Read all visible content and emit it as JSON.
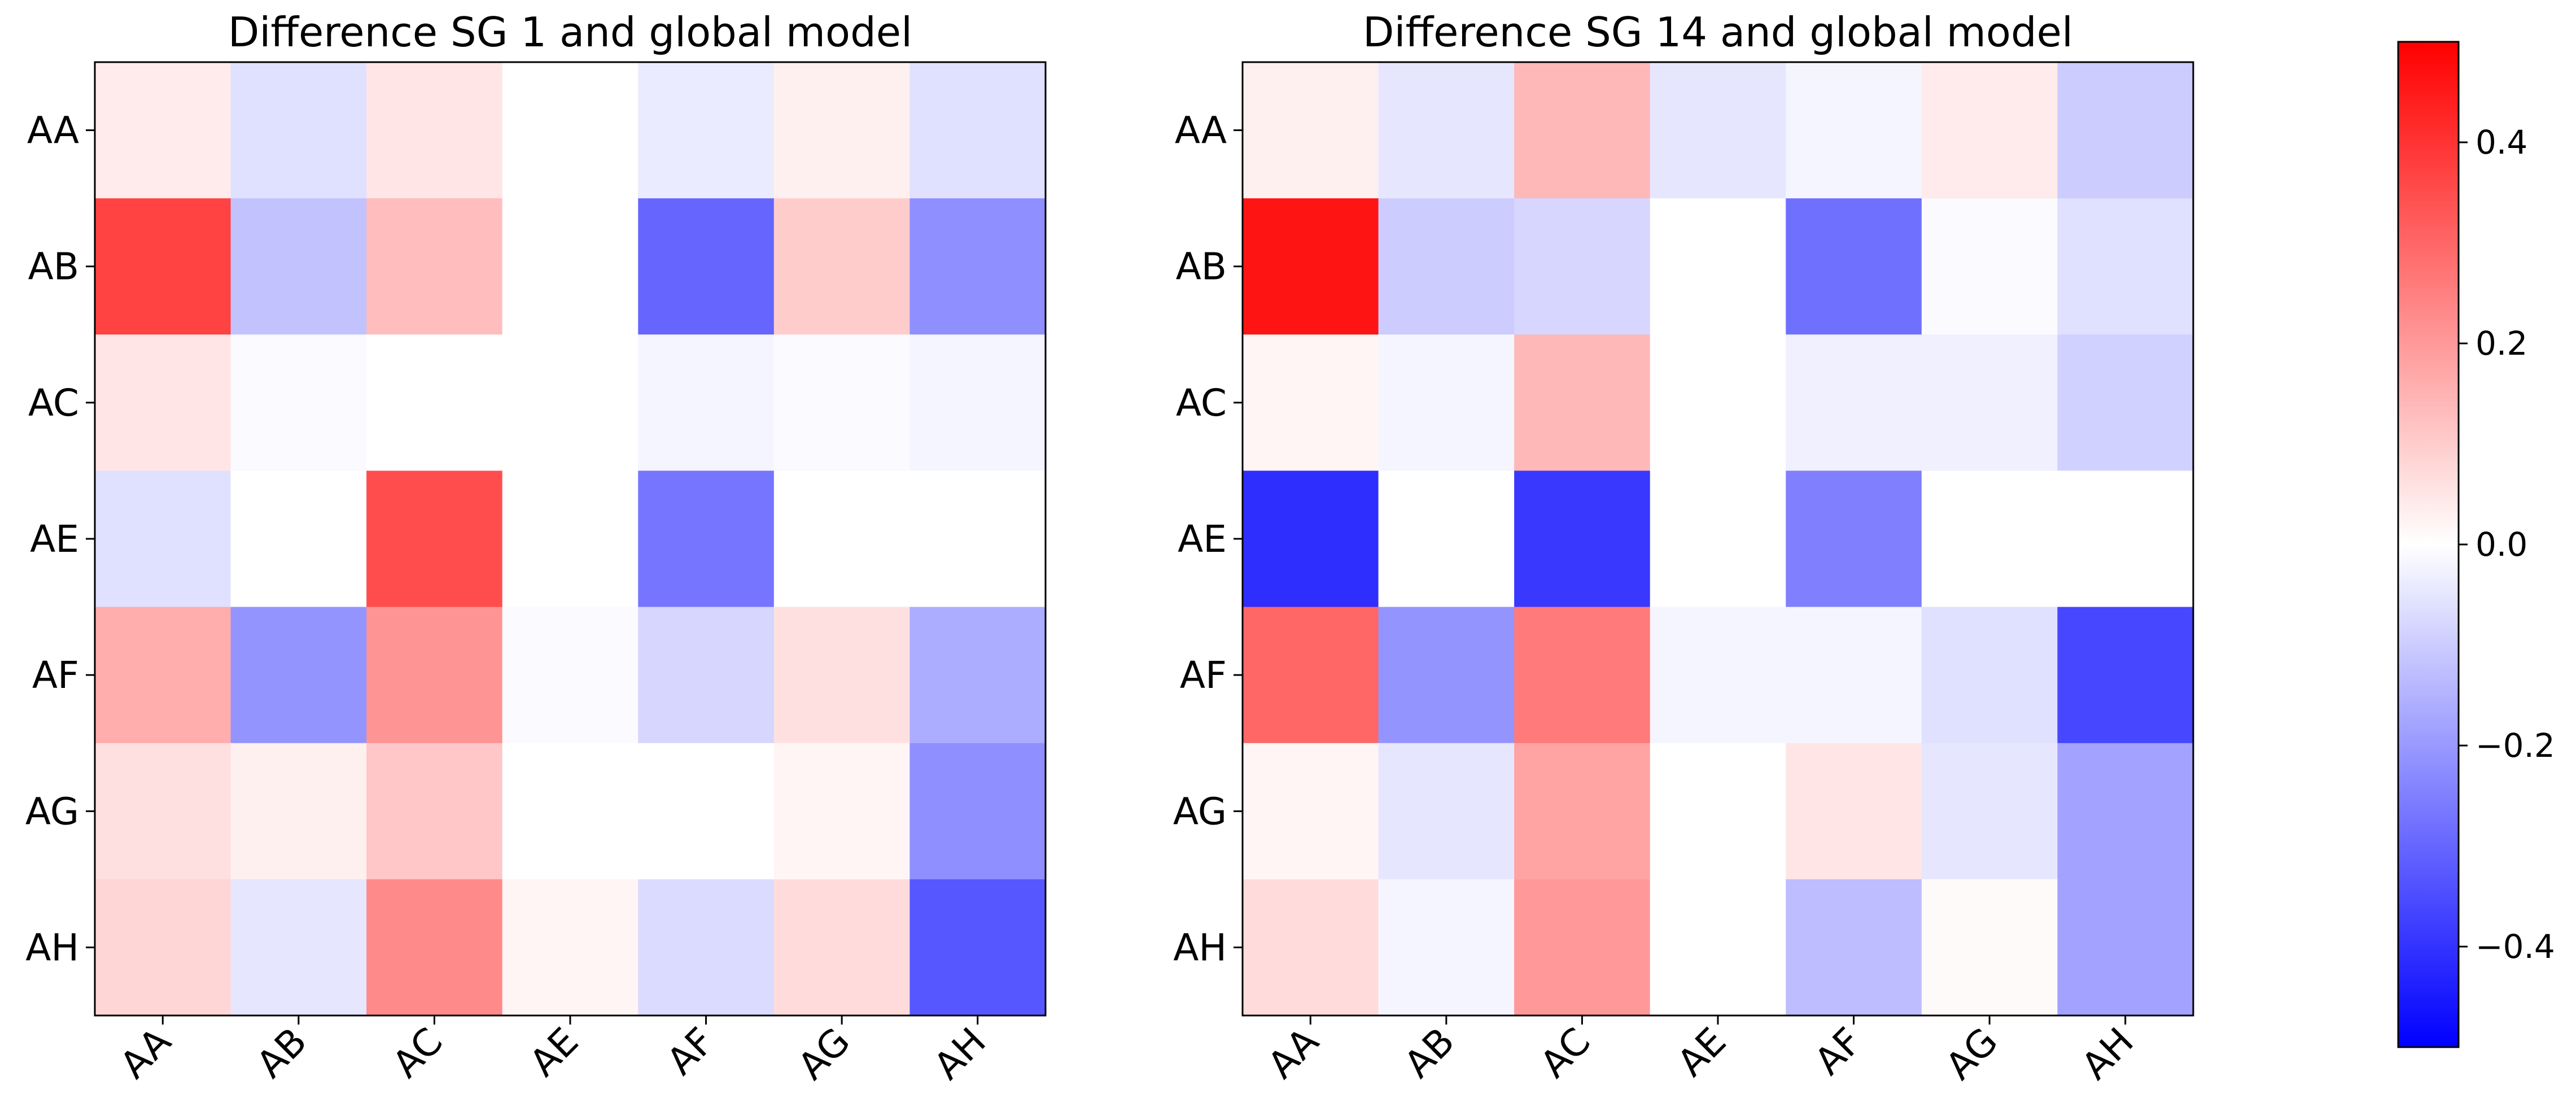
{
  "chart_data": [
    {
      "type": "heatmap",
      "title": "Difference SG 1 and global model",
      "x_categories": [
        "AA",
        "AB",
        "AC",
        "AE",
        "AF",
        "AG",
        "AH"
      ],
      "y_categories": [
        "AA",
        "AB",
        "AC",
        "AE",
        "AF",
        "AG",
        "AH"
      ],
      "values": [
        [
          0.04,
          -0.06,
          0.05,
          0.0,
          -0.04,
          0.03,
          -0.06
        ],
        [
          0.37,
          -0.12,
          0.13,
          0.0,
          -0.3,
          0.1,
          -0.22
        ],
        [
          0.05,
          -0.01,
          0.0,
          0.0,
          -0.02,
          -0.01,
          -0.02
        ],
        [
          -0.06,
          0.0,
          0.35,
          0.0,
          -0.27,
          0.0,
          0.0
        ],
        [
          0.16,
          -0.21,
          0.21,
          -0.01,
          -0.08,
          0.06,
          -0.16
        ],
        [
          0.06,
          0.03,
          0.11,
          0.0,
          0.0,
          0.02,
          -0.22
        ],
        [
          0.08,
          -0.05,
          0.23,
          0.02,
          -0.07,
          0.07,
          -0.33
        ]
      ]
    },
    {
      "type": "heatmap",
      "title": "Difference SG 14 and global model",
      "x_categories": [
        "AA",
        "AB",
        "AC",
        "AE",
        "AF",
        "AG",
        "AH"
      ],
      "y_categories": [
        "AA",
        "AB",
        "AC",
        "AE",
        "AF",
        "AG",
        "AH"
      ],
      "values": [
        [
          0.03,
          -0.05,
          0.14,
          -0.05,
          -0.02,
          0.04,
          -0.1
        ],
        [
          0.46,
          -0.1,
          -0.08,
          0.0,
          -0.28,
          -0.01,
          -0.06
        ],
        [
          0.02,
          -0.02,
          0.14,
          0.0,
          -0.03,
          -0.03,
          -0.09
        ],
        [
          -0.41,
          0.0,
          -0.39,
          0.0,
          -0.25,
          0.0,
          0.0
        ],
        [
          0.3,
          -0.21,
          0.26,
          -0.02,
          -0.02,
          -0.06,
          -0.36
        ],
        [
          0.02,
          -0.05,
          0.18,
          0.0,
          0.05,
          -0.05,
          -0.18
        ],
        [
          0.07,
          -0.02,
          0.2,
          0.0,
          -0.13,
          0.01,
          -0.18
        ]
      ]
    }
  ],
  "colorbar": {
    "colormap": "bwr",
    "min": -0.5,
    "max": 0.5,
    "ticks": [
      0.4,
      0.2,
      0.0,
      -0.2,
      -0.4
    ],
    "tick_labels": [
      "0.4",
      "0.2",
      "0.0",
      "−0.2",
      "−0.4"
    ]
  }
}
